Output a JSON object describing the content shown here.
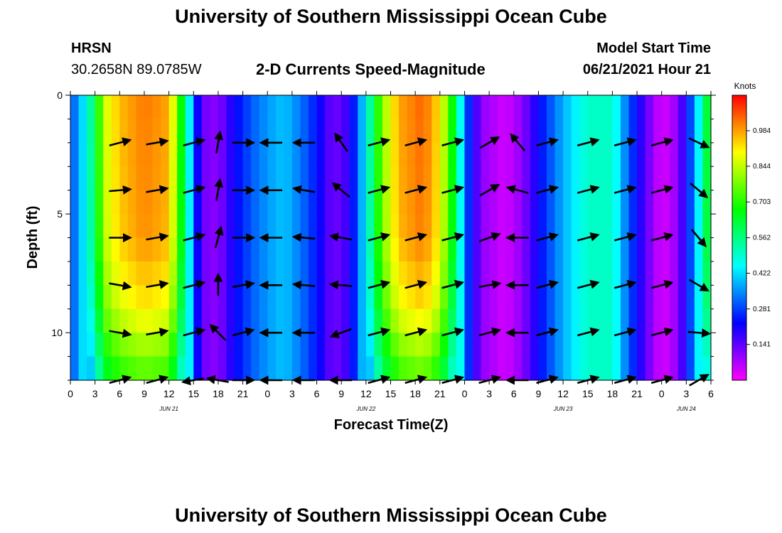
{
  "page": {
    "title_top": "University of Southern Mississippi Ocean Cube",
    "title_bottom": "University of Southern Mississippi Ocean Cube",
    "station": "HRSN",
    "coords": "30.2658N  89.0785W",
    "product": "2-D Currents Speed-Magnitude",
    "model_label": "Model Start Time",
    "model_time": "06/21/2021 Hour 21"
  },
  "chart_data": {
    "type": "heatmap",
    "title": "2-D Currents Speed-Magnitude",
    "xlabel": "Forecast Time(Z)",
    "ylabel": "Depth (ft)",
    "x_range_hours": [
      0,
      78
    ],
    "y_range_ft": [
      0,
      12
    ],
    "x_tick_labels": [
      "0",
      "3",
      "6",
      "9",
      "12",
      "15",
      "18",
      "21",
      "0",
      "3",
      "6",
      "9",
      "12",
      "15",
      "18",
      "21",
      "0",
      "3",
      "6",
      "9",
      "12",
      "15",
      "18",
      "21",
      "0",
      "3",
      "6"
    ],
    "y_tick_labels": [
      {
        "depth": 0,
        "label": "0"
      },
      {
        "depth": 5,
        "label": "5"
      },
      {
        "depth": 10,
        "label": "10"
      }
    ],
    "date_labels": [
      {
        "hour": 12,
        "label": "JUN 21"
      },
      {
        "hour": 36,
        "label": "JUN 22"
      },
      {
        "hour": 60,
        "label": "JUN 23"
      },
      {
        "hour": 75,
        "label": "JUN 24"
      }
    ],
    "colorbar": {
      "unit": "Knots",
      "range": [
        0.0,
        1.124
      ],
      "tick_labels": [
        "0.984",
        "0.844",
        "0.703",
        "0.562",
        "0.422",
        "0.281",
        "0.141"
      ],
      "colors": [
        "#ff00ff",
        "#8000ff",
        "#0000ff",
        "#0080ff",
        "#00ffff",
        "#00ff80",
        "#00ff00",
        "#80ff00",
        "#ffff00",
        "#ff8000",
        "#ff0000"
      ]
    },
    "speed_time_profile_knots": [
      {
        "hour": 0,
        "speed": 0.28
      },
      {
        "hour": 1.5,
        "speed": 0.42
      },
      {
        "hour": 3,
        "speed": 0.6
      },
      {
        "hour": 4,
        "speed": 0.85
      },
      {
        "hour": 6,
        "speed": 0.96
      },
      {
        "hour": 9,
        "speed": 1.02
      },
      {
        "hour": 12,
        "speed": 0.98
      },
      {
        "hour": 14,
        "speed": 0.58
      },
      {
        "hour": 15,
        "speed": 0.3
      },
      {
        "hour": 16,
        "speed": 0.13
      },
      {
        "hour": 18,
        "speed": 0.1
      },
      {
        "hour": 20,
        "speed": 0.22
      },
      {
        "hour": 22,
        "speed": 0.3
      },
      {
        "hour": 24,
        "speed": 0.36
      },
      {
        "hour": 26,
        "speed": 0.4
      },
      {
        "hour": 28,
        "speed": 0.33
      },
      {
        "hour": 30,
        "speed": 0.24
      },
      {
        "hour": 32,
        "speed": 0.12
      },
      {
        "hour": 34,
        "speed": 0.18
      },
      {
        "hour": 36,
        "speed": 0.45
      },
      {
        "hour": 38,
        "speed": 0.8
      },
      {
        "hour": 40,
        "speed": 0.98
      },
      {
        "hour": 43,
        "speed": 1.04
      },
      {
        "hour": 45,
        "speed": 0.92
      },
      {
        "hour": 47,
        "speed": 0.6
      },
      {
        "hour": 48,
        "speed": 0.32
      },
      {
        "hour": 50,
        "speed": 0.1
      },
      {
        "hour": 53,
        "speed": 0.04
      },
      {
        "hour": 55,
        "speed": 0.1
      },
      {
        "hour": 57,
        "speed": 0.22
      },
      {
        "hour": 60,
        "speed": 0.38
      },
      {
        "hour": 63,
        "speed": 0.5
      },
      {
        "hour": 66,
        "speed": 0.5
      },
      {
        "hour": 68,
        "speed": 0.3
      },
      {
        "hour": 70,
        "speed": 0.15
      },
      {
        "hour": 72,
        "speed": 0.03
      },
      {
        "hour": 74,
        "speed": 0.1
      },
      {
        "hour": 76,
        "speed": 0.35
      },
      {
        "hour": 78,
        "speed": 0.72
      }
    ],
    "depth_factor_by_depth": [
      {
        "depth": 0,
        "factor": 1.0
      },
      {
        "depth": 6,
        "factor": 0.98
      },
      {
        "depth": 9,
        "factor": 0.9
      },
      {
        "depth": 12,
        "factor": 0.72
      }
    ],
    "vector_rows_depth_ft": [
      2,
      4,
      6,
      8,
      10,
      12
    ],
    "vector_cols_hour": [
      6,
      10.5,
      15,
      18,
      21,
      24.5,
      28.5,
      33,
      37.5,
      42,
      46.5,
      51,
      54.5,
      58,
      63,
      67.5,
      72,
      76.5
    ],
    "vector_directions_deg": [
      [
        15,
        10,
        15,
        80,
        0,
        180,
        180,
        125,
        15,
        15,
        15,
        30,
        130,
        15,
        15,
        15,
        15,
        335
      ],
      [
        5,
        10,
        15,
        80,
        0,
        180,
        170,
        140,
        15,
        15,
        15,
        30,
        165,
        15,
        15,
        15,
        15,
        320
      ],
      [
        0,
        10,
        15,
        75,
        0,
        180,
        175,
        170,
        15,
        15,
        15,
        20,
        180,
        15,
        15,
        15,
        15,
        310
      ],
      [
        350,
        10,
        15,
        90,
        10,
        180,
        175,
        175,
        15,
        15,
        15,
        10,
        180,
        15,
        15,
        15,
        15,
        330
      ],
      [
        350,
        10,
        15,
        135,
        15,
        180,
        180,
        200,
        15,
        15,
        15,
        15,
        180,
        15,
        15,
        15,
        15,
        355
      ],
      [
        15,
        15,
        190,
        170,
        0,
        180,
        180,
        180,
        15,
        15,
        15,
        15,
        180,
        15,
        15,
        15,
        15,
        30
      ]
    ]
  }
}
